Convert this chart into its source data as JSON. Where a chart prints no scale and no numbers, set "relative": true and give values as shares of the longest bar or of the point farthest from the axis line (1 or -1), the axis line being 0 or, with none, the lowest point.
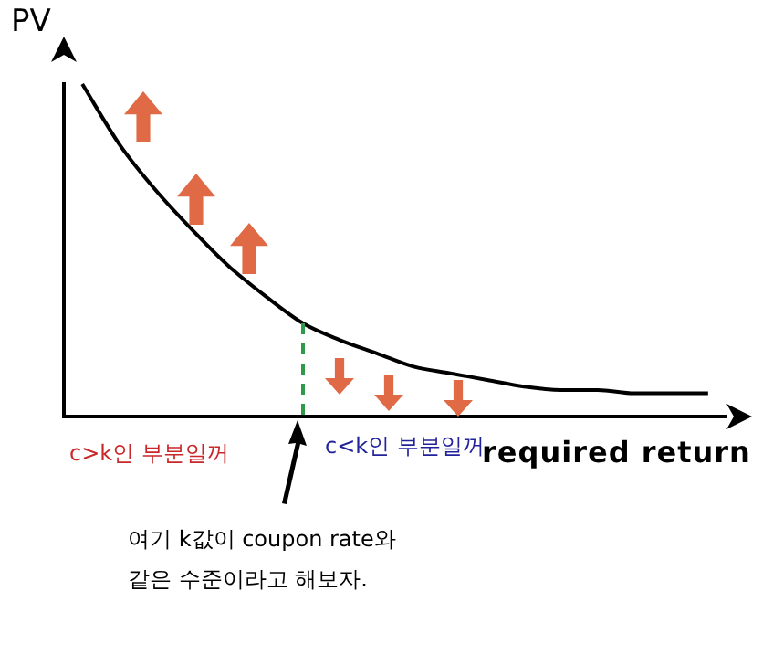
{
  "chart_data": {
    "type": "line",
    "relative": true,
    "xlabel": "required return",
    "ylabel": "PV",
    "categories": [
      null,
      null,
      null,
      null,
      null,
      null,
      null,
      null,
      null,
      null,
      null,
      null,
      null,
      null,
      null,
      null,
      null,
      null
    ],
    "series": [
      {
        "color": "#000000",
        "values": [
          1.0,
          0.82,
          0.68,
          0.56,
          0.45,
          0.36,
          0.28,
          0.23,
          0.19,
          0.15,
          0.13,
          0.11,
          0.09,
          0.08,
          0.08,
          0.07,
          0.07,
          0.07
        ]
      }
    ],
    "annotations": [
      "c>k인 부분일꺼",
      "c<k인 부분일꺼",
      "여기 k값이 coupon rate와 같은 수준이라고 해보자."
    ],
    "marker": "none",
    "grid": false,
    "legend": false
  }
}
